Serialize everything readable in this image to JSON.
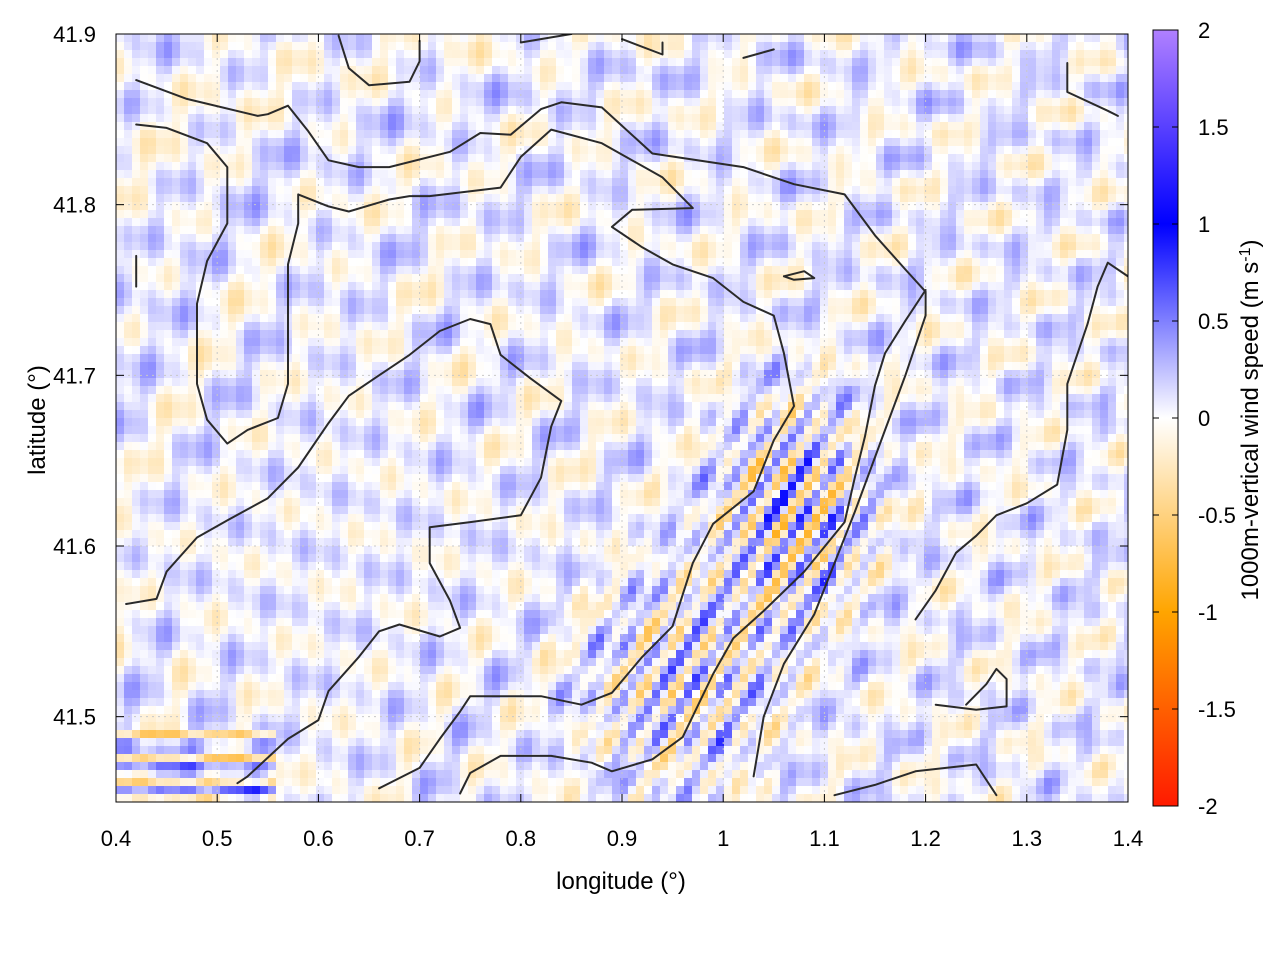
{
  "chart_data": {
    "type": "heatmap",
    "title": "",
    "xlabel": "longitude (°)",
    "ylabel": "latitude (°)",
    "xlim": [
      0.4,
      1.4
    ],
    "ylim": [
      41.45,
      41.9
    ],
    "x_ticks": [
      0.4,
      0.5,
      0.6,
      0.7,
      0.8,
      0.9,
      1.0,
      1.1,
      1.2,
      1.3,
      1.4
    ],
    "x_tick_labels": [
      "0.4",
      "0.5",
      "0.6",
      "0.7",
      "0.8",
      "0.9",
      "1",
      "1.1",
      "1.2",
      "1.3",
      "1.4"
    ],
    "y_ticks": [
      41.5,
      41.6,
      41.7,
      41.8,
      41.9
    ],
    "y_tick_labels": [
      "41.5",
      "41.6",
      "41.7",
      "41.8",
      "41.9"
    ],
    "grid": true,
    "colorbar": {
      "label_main": "1000m-vertical wind speed (m s",
      "label_sup": "-1",
      "label_close": ")",
      "range": [
        -2,
        2
      ],
      "ticks": [
        2,
        1.5,
        1,
        0.5,
        0,
        -0.5,
        -1,
        -1.5,
        -2
      ],
      "tick_labels": [
        "2",
        "1.5",
        "1",
        "0.5",
        "0",
        "-0.5",
        "-1",
        "-1.5",
        "-2"
      ],
      "stops": [
        {
          "value": -2,
          "color": "#ff1a00"
        },
        {
          "value": -1,
          "color": "#ffa500"
        },
        {
          "value": 0,
          "color": "#ffffff"
        },
        {
          "value": 1,
          "color": "#0000ff"
        },
        {
          "value": 2,
          "color": "#b080ff"
        }
      ]
    },
    "contour_color": "#2a2a2a",
    "contours": [
      [
        [
          0.42,
          41.873
        ],
        [
          0.47,
          41.862
        ],
        [
          0.54,
          41.852
        ],
        [
          0.55,
          41.853
        ],
        [
          0.57,
          41.858
        ],
        [
          0.59,
          41.843
        ],
        [
          0.61,
          41.826
        ],
        [
          0.64,
          41.822
        ],
        [
          0.67,
          41.822
        ],
        [
          0.73,
          41.831
        ],
        [
          0.76,
          41.842
        ],
        [
          0.79,
          41.841
        ],
        [
          0.82,
          41.856
        ],
        [
          0.84,
          41.86
        ],
        [
          0.88,
          41.857
        ],
        [
          0.93,
          41.83
        ],
        [
          1.02,
          41.822
        ],
        [
          1.07,
          41.812
        ],
        [
          1.12,
          41.806
        ],
        [
          1.15,
          41.782
        ],
        [
          1.18,
          41.762
        ],
        [
          1.2,
          41.749
        ],
        [
          1.2,
          41.735
        ],
        [
          1.18,
          41.7
        ],
        [
          1.16,
          41.668
        ],
        [
          1.13,
          41.62
        ],
        [
          1.11,
          41.59
        ],
        [
          1.09,
          41.56
        ],
        [
          1.06,
          41.531
        ],
        [
          1.04,
          41.5
        ],
        [
          1.03,
          41.465
        ]
      ],
      [
        [
          0.42,
          41.847
        ],
        [
          0.45,
          41.845
        ],
        [
          0.49,
          41.836
        ],
        [
          0.51,
          41.822
        ],
        [
          0.51,
          41.805
        ],
        [
          0.51,
          41.789
        ],
        [
          0.49,
          41.767
        ],
        [
          0.48,
          41.742
        ],
        [
          0.48,
          41.718
        ],
        [
          0.48,
          41.695
        ],
        [
          0.49,
          41.674
        ],
        [
          0.51,
          41.66
        ],
        [
          0.53,
          41.668
        ],
        [
          0.56,
          41.675
        ],
        [
          0.57,
          41.695
        ],
        [
          0.57,
          41.716
        ],
        [
          0.57,
          41.741
        ],
        [
          0.57,
          41.765
        ],
        [
          0.58,
          41.789
        ],
        [
          0.58,
          41.806
        ],
        [
          0.61,
          41.799
        ],
        [
          0.63,
          41.796
        ],
        [
          0.67,
          41.803
        ],
        [
          0.69,
          41.805
        ],
        [
          0.71,
          41.805
        ],
        [
          0.78,
          41.81
        ],
        [
          0.8,
          41.828
        ],
        [
          0.83,
          41.844
        ],
        [
          0.88,
          41.836
        ],
        [
          0.94,
          41.816
        ],
        [
          0.97,
          41.798
        ],
        [
          0.91,
          41.797
        ],
        [
          0.89,
          41.787
        ],
        [
          0.92,
          41.775
        ],
        [
          0.95,
          41.765
        ],
        [
          0.99,
          41.757
        ],
        [
          1.02,
          41.743
        ],
        [
          1.05,
          41.735
        ],
        [
          1.06,
          41.713
        ],
        [
          1.07,
          41.682
        ],
        [
          1.05,
          41.662
        ],
        [
          1.03,
          41.632
        ],
        [
          0.99,
          41.613
        ],
        [
          0.97,
          41.59
        ],
        [
          0.95,
          41.553
        ],
        [
          0.92,
          41.535
        ],
        [
          0.89,
          41.514
        ],
        [
          0.86,
          41.507
        ],
        [
          0.82,
          41.512
        ],
        [
          0.79,
          41.512
        ],
        [
          0.75,
          41.512
        ],
        [
          0.74,
          41.503
        ],
        [
          0.72,
          41.487
        ],
        [
          0.7,
          41.47
        ],
        [
          0.66,
          41.458
        ]
      ],
      [
        [
          0.41,
          41.566
        ],
        [
          0.44,
          41.569
        ],
        [
          0.45,
          41.585
        ],
        [
          0.48,
          41.605
        ],
        [
          0.51,
          41.615
        ],
        [
          0.55,
          41.628
        ],
        [
          0.58,
          41.646
        ],
        [
          0.61,
          41.672
        ],
        [
          0.63,
          41.688
        ],
        [
          0.66,
          41.7
        ],
        [
          0.69,
          41.712
        ],
        [
          0.72,
          41.726
        ],
        [
          0.75,
          41.733
        ],
        [
          0.77,
          41.73
        ],
        [
          0.78,
          41.712
        ],
        [
          0.81,
          41.698
        ],
        [
          0.84,
          41.685
        ],
        [
          0.83,
          41.67
        ],
        [
          0.82,
          41.64
        ],
        [
          0.8,
          41.618
        ],
        [
          0.75,
          41.614
        ],
        [
          0.71,
          41.611
        ],
        [
          0.71,
          41.59
        ],
        [
          0.73,
          41.568
        ],
        [
          0.74,
          41.552
        ],
        [
          0.72,
          41.547
        ],
        [
          0.68,
          41.554
        ],
        [
          0.66,
          41.55
        ],
        [
          0.64,
          41.535
        ],
        [
          0.61,
          41.515
        ],
        [
          0.6,
          41.498
        ],
        [
          0.57,
          41.487
        ],
        [
          0.53,
          41.465
        ],
        [
          0.52,
          41.461
        ]
      ],
      [
        [
          0.74,
          41.455
        ],
        [
          0.75,
          41.467
        ],
        [
          0.78,
          41.477
        ],
        [
          0.83,
          41.477
        ],
        [
          0.87,
          41.473
        ],
        [
          0.89,
          41.468
        ],
        [
          0.93,
          41.475
        ],
        [
          0.96,
          41.488
        ],
        [
          0.99,
          41.525
        ],
        [
          1.01,
          41.546
        ],
        [
          1.04,
          41.562
        ],
        [
          1.08,
          41.585
        ],
        [
          1.12,
          41.614
        ],
        [
          1.13,
          41.64
        ],
        [
          1.14,
          41.664
        ],
        [
          1.15,
          41.694
        ],
        [
          1.16,
          41.713
        ],
        [
          1.18,
          41.732
        ],
        [
          1.2,
          41.75
        ]
      ],
      [
        [
          1.11,
          41.454
        ],
        [
          1.15,
          41.46
        ],
        [
          1.19,
          41.468
        ],
        [
          1.25,
          41.472
        ],
        [
          1.27,
          41.454
        ]
      ],
      [
        [
          1.19,
          41.557
        ],
        [
          1.21,
          41.574
        ],
        [
          1.23,
          41.596
        ],
        [
          1.25,
          41.606
        ],
        [
          1.27,
          41.618
        ],
        [
          1.3,
          41.625
        ],
        [
          1.33,
          41.636
        ],
        [
          1.34,
          41.668
        ],
        [
          1.34,
          41.695
        ],
        [
          1.36,
          41.73
        ],
        [
          1.37,
          41.752
        ],
        [
          1.38,
          41.766
        ],
        [
          1.41,
          41.754
        ]
      ],
      [
        [
          1.21,
          41.507
        ],
        [
          1.25,
          41.504
        ],
        [
          1.28,
          41.506
        ],
        [
          1.28,
          41.522
        ],
        [
          1.27,
          41.528
        ],
        [
          1.26,
          41.519
        ],
        [
          1.24,
          41.507
        ]
      ],
      [
        [
          1.06,
          41.758
        ],
        [
          1.08,
          41.761
        ],
        [
          1.09,
          41.757
        ],
        [
          1.07,
          41.756
        ],
        [
          1.06,
          41.758
        ]
      ],
      [
        [
          0.62,
          41.899
        ],
        [
          0.63,
          41.88
        ],
        [
          0.65,
          41.87
        ],
        [
          0.69,
          41.872
        ],
        [
          0.7,
          41.884
        ],
        [
          0.7,
          41.896
        ]
      ],
      [
        [
          0.8,
          41.895
        ],
        [
          0.83,
          41.898
        ],
        [
          0.85,
          41.9
        ]
      ],
      [
        [
          0.9,
          41.897
        ],
        [
          0.94,
          41.888
        ],
        [
          0.94,
          41.895
        ]
      ],
      [
        [
          1.02,
          41.886
        ],
        [
          1.05,
          41.891
        ]
      ],
      [
        [
          1.34,
          41.883
        ],
        [
          1.34,
          41.866
        ],
        [
          1.38,
          41.855
        ],
        [
          1.39,
          41.852
        ]
      ],
      [
        [
          0.42,
          41.77
        ],
        [
          0.42,
          41.752
        ]
      ]
    ]
  }
}
